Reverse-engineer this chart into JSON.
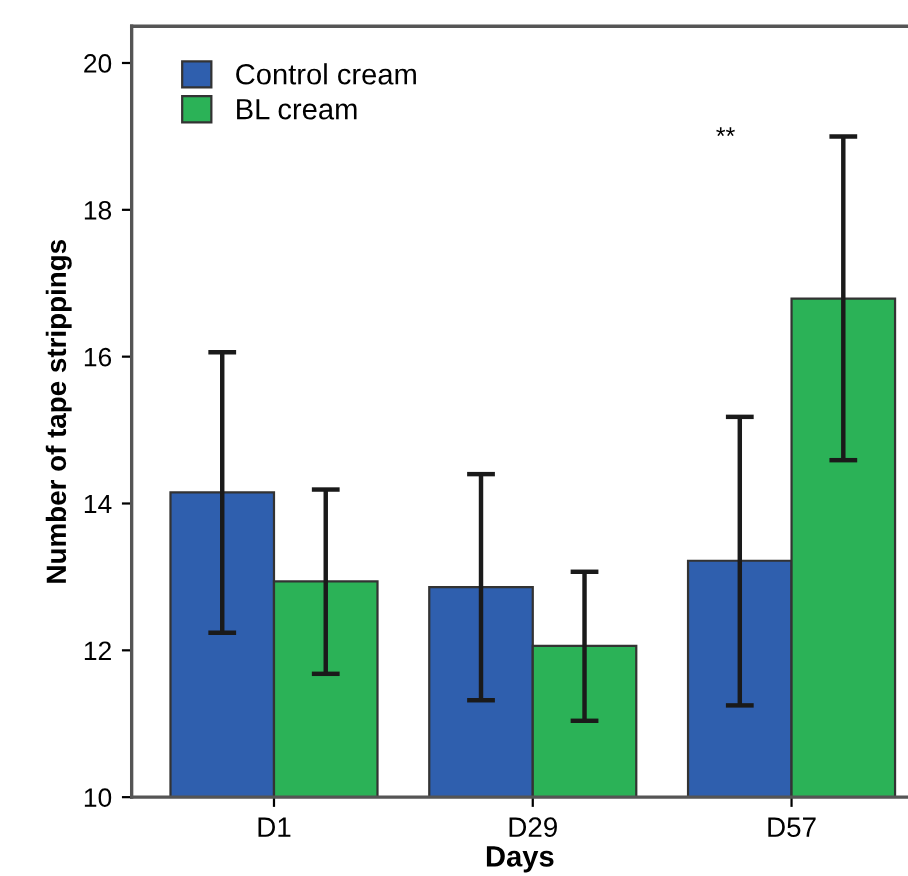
{
  "chart_data": {
    "type": "bar",
    "xlabel": "Days",
    "ylabel": "Number of tape strippings",
    "categories": [
      "D1",
      "D29",
      "D57"
    ],
    "series": [
      {
        "name": "Control cream",
        "color": "#2f5fae",
        "values": [
          14.15,
          12.86,
          13.22
        ],
        "errors": [
          [
            12.24,
            16.06
          ],
          [
            11.32,
            14.4
          ],
          [
            11.25,
            15.18
          ]
        ]
      },
      {
        "name": "BL cream",
        "color": "#2bb257",
        "values": [
          12.94,
          12.06,
          16.79
        ],
        "errors": [
          [
            11.68,
            14.19
          ],
          [
            11.04,
            13.07
          ],
          [
            14.59,
            19.0
          ]
        ]
      }
    ],
    "ylim": [
      10,
      20.5
    ],
    "yticks": [
      10,
      12,
      14,
      16,
      18,
      20
    ],
    "legend": "top left",
    "grid": false,
    "annotations": [
      "**"
    ]
  }
}
